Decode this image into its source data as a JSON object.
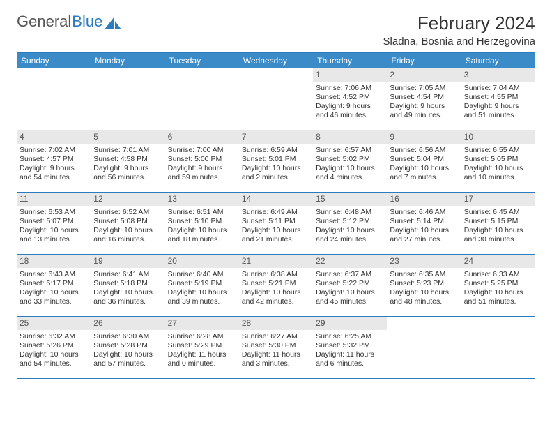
{
  "logo": {
    "part1": "General",
    "part2": "Blue"
  },
  "title": "February 2024",
  "location": "Sladna, Bosnia and Herzegovina",
  "colors": {
    "header_bg": "#3b8bc9",
    "header_border": "#2b7bbf",
    "daynum_bg": "#e8e8e8",
    "text": "#333333",
    "logo_gray": "#555555",
    "logo_blue": "#2b7bbf",
    "background": "#ffffff"
  },
  "typography": {
    "title_fontsize": 26,
    "location_fontsize": 15,
    "dayhead_fontsize": 12,
    "cell_fontsize": 10.5,
    "logo_fontsize": 22
  },
  "days": [
    "Sunday",
    "Monday",
    "Tuesday",
    "Wednesday",
    "Thursday",
    "Friday",
    "Saturday"
  ],
  "weeks": [
    [
      {
        "n": "",
        "sr": "",
        "ss": "",
        "dl": ""
      },
      {
        "n": "",
        "sr": "",
        "ss": "",
        "dl": ""
      },
      {
        "n": "",
        "sr": "",
        "ss": "",
        "dl": ""
      },
      {
        "n": "",
        "sr": "",
        "ss": "",
        "dl": ""
      },
      {
        "n": "1",
        "sr": "Sunrise: 7:06 AM",
        "ss": "Sunset: 4:52 PM",
        "dl": "Daylight: 9 hours and 46 minutes."
      },
      {
        "n": "2",
        "sr": "Sunrise: 7:05 AM",
        "ss": "Sunset: 4:54 PM",
        "dl": "Daylight: 9 hours and 49 minutes."
      },
      {
        "n": "3",
        "sr": "Sunrise: 7:04 AM",
        "ss": "Sunset: 4:55 PM",
        "dl": "Daylight: 9 hours and 51 minutes."
      }
    ],
    [
      {
        "n": "4",
        "sr": "Sunrise: 7:02 AM",
        "ss": "Sunset: 4:57 PM",
        "dl": "Daylight: 9 hours and 54 minutes."
      },
      {
        "n": "5",
        "sr": "Sunrise: 7:01 AM",
        "ss": "Sunset: 4:58 PM",
        "dl": "Daylight: 9 hours and 56 minutes."
      },
      {
        "n": "6",
        "sr": "Sunrise: 7:00 AM",
        "ss": "Sunset: 5:00 PM",
        "dl": "Daylight: 9 hours and 59 minutes."
      },
      {
        "n": "7",
        "sr": "Sunrise: 6:59 AM",
        "ss": "Sunset: 5:01 PM",
        "dl": "Daylight: 10 hours and 2 minutes."
      },
      {
        "n": "8",
        "sr": "Sunrise: 6:57 AM",
        "ss": "Sunset: 5:02 PM",
        "dl": "Daylight: 10 hours and 4 minutes."
      },
      {
        "n": "9",
        "sr": "Sunrise: 6:56 AM",
        "ss": "Sunset: 5:04 PM",
        "dl": "Daylight: 10 hours and 7 minutes."
      },
      {
        "n": "10",
        "sr": "Sunrise: 6:55 AM",
        "ss": "Sunset: 5:05 PM",
        "dl": "Daylight: 10 hours and 10 minutes."
      }
    ],
    [
      {
        "n": "11",
        "sr": "Sunrise: 6:53 AM",
        "ss": "Sunset: 5:07 PM",
        "dl": "Daylight: 10 hours and 13 minutes."
      },
      {
        "n": "12",
        "sr": "Sunrise: 6:52 AM",
        "ss": "Sunset: 5:08 PM",
        "dl": "Daylight: 10 hours and 16 minutes."
      },
      {
        "n": "13",
        "sr": "Sunrise: 6:51 AM",
        "ss": "Sunset: 5:10 PM",
        "dl": "Daylight: 10 hours and 18 minutes."
      },
      {
        "n": "14",
        "sr": "Sunrise: 6:49 AM",
        "ss": "Sunset: 5:11 PM",
        "dl": "Daylight: 10 hours and 21 minutes."
      },
      {
        "n": "15",
        "sr": "Sunrise: 6:48 AM",
        "ss": "Sunset: 5:12 PM",
        "dl": "Daylight: 10 hours and 24 minutes."
      },
      {
        "n": "16",
        "sr": "Sunrise: 6:46 AM",
        "ss": "Sunset: 5:14 PM",
        "dl": "Daylight: 10 hours and 27 minutes."
      },
      {
        "n": "17",
        "sr": "Sunrise: 6:45 AM",
        "ss": "Sunset: 5:15 PM",
        "dl": "Daylight: 10 hours and 30 minutes."
      }
    ],
    [
      {
        "n": "18",
        "sr": "Sunrise: 6:43 AM",
        "ss": "Sunset: 5:17 PM",
        "dl": "Daylight: 10 hours and 33 minutes."
      },
      {
        "n": "19",
        "sr": "Sunrise: 6:41 AM",
        "ss": "Sunset: 5:18 PM",
        "dl": "Daylight: 10 hours and 36 minutes."
      },
      {
        "n": "20",
        "sr": "Sunrise: 6:40 AM",
        "ss": "Sunset: 5:19 PM",
        "dl": "Daylight: 10 hours and 39 minutes."
      },
      {
        "n": "21",
        "sr": "Sunrise: 6:38 AM",
        "ss": "Sunset: 5:21 PM",
        "dl": "Daylight: 10 hours and 42 minutes."
      },
      {
        "n": "22",
        "sr": "Sunrise: 6:37 AM",
        "ss": "Sunset: 5:22 PM",
        "dl": "Daylight: 10 hours and 45 minutes."
      },
      {
        "n": "23",
        "sr": "Sunrise: 6:35 AM",
        "ss": "Sunset: 5:23 PM",
        "dl": "Daylight: 10 hours and 48 minutes."
      },
      {
        "n": "24",
        "sr": "Sunrise: 6:33 AM",
        "ss": "Sunset: 5:25 PM",
        "dl": "Daylight: 10 hours and 51 minutes."
      }
    ],
    [
      {
        "n": "25",
        "sr": "Sunrise: 6:32 AM",
        "ss": "Sunset: 5:26 PM",
        "dl": "Daylight: 10 hours and 54 minutes."
      },
      {
        "n": "26",
        "sr": "Sunrise: 6:30 AM",
        "ss": "Sunset: 5:28 PM",
        "dl": "Daylight: 10 hours and 57 minutes."
      },
      {
        "n": "27",
        "sr": "Sunrise: 6:28 AM",
        "ss": "Sunset: 5:29 PM",
        "dl": "Daylight: 11 hours and 0 minutes."
      },
      {
        "n": "28",
        "sr": "Sunrise: 6:27 AM",
        "ss": "Sunset: 5:30 PM",
        "dl": "Daylight: 11 hours and 3 minutes."
      },
      {
        "n": "29",
        "sr": "Sunrise: 6:25 AM",
        "ss": "Sunset: 5:32 PM",
        "dl": "Daylight: 11 hours and 6 minutes."
      },
      {
        "n": "",
        "sr": "",
        "ss": "",
        "dl": ""
      },
      {
        "n": "",
        "sr": "",
        "ss": "",
        "dl": ""
      }
    ]
  ]
}
